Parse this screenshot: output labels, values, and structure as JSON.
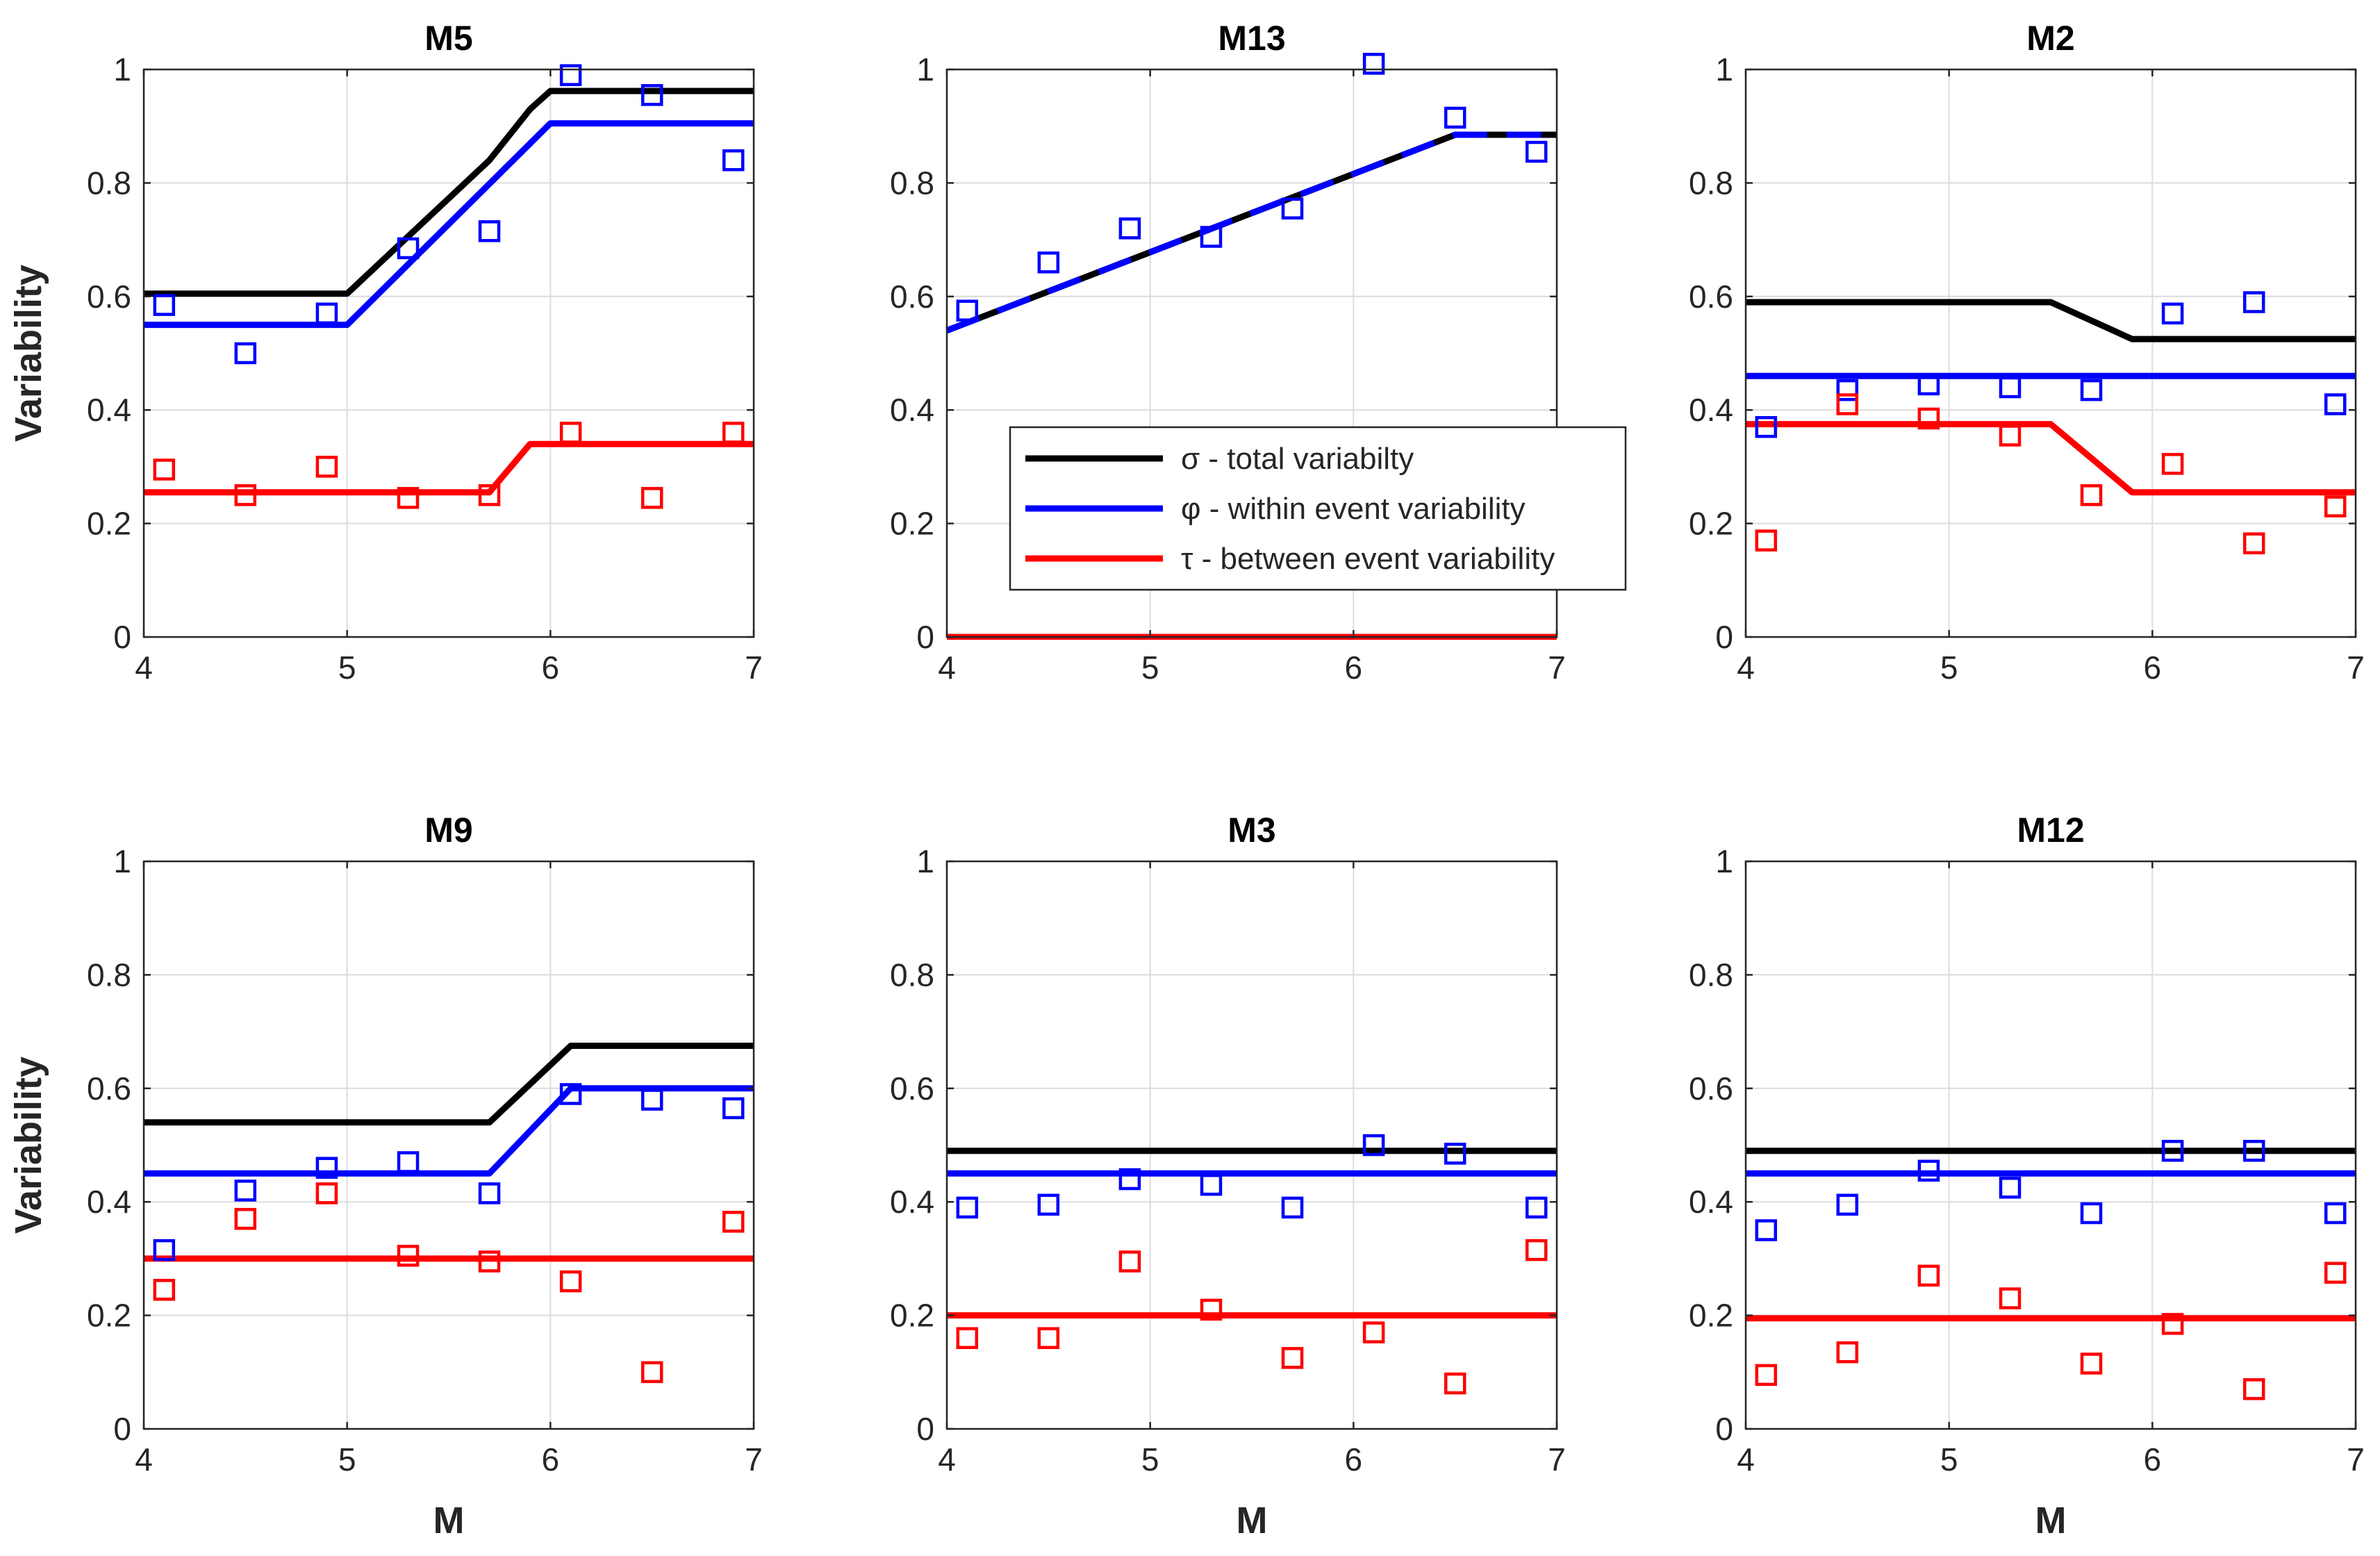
{
  "colors": {
    "sigma": "#000000",
    "phi": "#0000ff",
    "tau": "#ff0000",
    "grid": "#dcdcdc",
    "axis": "#262626"
  },
  "legend": {
    "items": [
      {
        "key": "sigma",
        "label": "σ - total variabilty"
      },
      {
        "key": "phi",
        "label": "φ - within event variability"
      },
      {
        "key": "tau",
        "label": "τ - between event variability"
      }
    ],
    "location": "inside M13 panel, lower-right"
  },
  "chart_data": [
    {
      "type": "line",
      "title": "M5",
      "xlabel": "",
      "ylabel": "Variability",
      "xlim": [
        4,
        7
      ],
      "ylim": [
        0,
        1
      ],
      "xticks": [
        4,
        5,
        6,
        7
      ],
      "yticks": [
        0,
        0.2,
        0.4,
        0.6,
        0.8,
        1
      ],
      "ytick_labels": [
        "0",
        "0.2",
        "0.4",
        "0.6",
        "0.8",
        "1"
      ],
      "grid": true,
      "series": [
        {
          "key": "sigma",
          "kind": "line",
          "x": [
            4,
            5,
            5.7,
            5.9,
            6,
            7
          ],
          "y": [
            0.605,
            0.605,
            0.84,
            0.93,
            0.962,
            0.962
          ]
        },
        {
          "key": "phi",
          "kind": "line",
          "x": [
            4,
            5,
            6,
            7
          ],
          "y": [
            0.55,
            0.55,
            0.905,
            0.905
          ]
        },
        {
          "key": "tau",
          "kind": "line",
          "x": [
            4,
            5.7,
            5.9,
            7
          ],
          "y": [
            0.255,
            0.255,
            0.34,
            0.34
          ]
        },
        {
          "key": "phi",
          "kind": "markers",
          "x": [
            4.1,
            4.5,
            4.9,
            5.3,
            5.7,
            6.1,
            6.5,
            6.9
          ],
          "y": [
            0.585,
            0.5,
            0.57,
            0.685,
            0.715,
            0.99,
            0.955,
            0.84
          ]
        },
        {
          "key": "tau",
          "kind": "markers",
          "x": [
            4.1,
            4.5,
            4.9,
            5.3,
            5.7,
            6.1,
            6.5,
            6.9
          ],
          "y": [
            0.295,
            0.25,
            0.3,
            0.245,
            0.25,
            0.36,
            0.245,
            0.36
          ]
        }
      ]
    },
    {
      "type": "line",
      "title": "M13",
      "xlabel": "",
      "ylabel": "",
      "xlim": [
        4,
        7
      ],
      "ylim": [
        0,
        1
      ],
      "xticks": [
        4,
        5,
        6,
        7
      ],
      "yticks": [
        0,
        0.2,
        0.4,
        0.6,
        0.8,
        1
      ],
      "ytick_labels": [
        "0",
        "0.2",
        "0.4",
        "0.6",
        "0.8",
        "1"
      ],
      "grid": true,
      "series": [
        {
          "key": "sigma",
          "kind": "line",
          "x": [
            4,
            6.5,
            7
          ],
          "y": [
            0.54,
            0.885,
            0.885
          ]
        },
        {
          "key": "phi",
          "kind": "line",
          "dashed": true,
          "x": [
            4,
            6.5,
            7
          ],
          "y": [
            0.54,
            0.885,
            0.885
          ]
        },
        {
          "key": "tau",
          "kind": "line",
          "x": [
            4,
            7
          ],
          "y": [
            0,
            0
          ]
        },
        {
          "key": "phi",
          "kind": "markers",
          "x": [
            4.1,
            4.5,
            4.9,
            5.3,
            5.7,
            6.1,
            6.5,
            6.9
          ],
          "y": [
            0.575,
            0.66,
            0.72,
            0.705,
            0.755,
            1.01,
            0.915,
            0.855
          ]
        }
      ]
    },
    {
      "type": "line",
      "title": "M2",
      "xlabel": "",
      "ylabel": "",
      "xlim": [
        4,
        7
      ],
      "ylim": [
        0,
        1
      ],
      "xticks": [
        4,
        5,
        6,
        7
      ],
      "yticks": [
        0,
        0.2,
        0.4,
        0.6,
        0.8,
        1
      ],
      "ytick_labels": [
        "0",
        "0.2",
        "0.4",
        "0.6",
        "0.8",
        "1"
      ],
      "grid": true,
      "series": [
        {
          "key": "sigma",
          "kind": "line",
          "x": [
            4,
            5.5,
            5.9,
            7
          ],
          "y": [
            0.59,
            0.59,
            0.525,
            0.525
          ]
        },
        {
          "key": "phi",
          "kind": "line",
          "x": [
            4,
            7
          ],
          "y": [
            0.46,
            0.46
          ]
        },
        {
          "key": "tau",
          "kind": "line",
          "x": [
            4,
            5.5,
            5.9,
            7
          ],
          "y": [
            0.375,
            0.375,
            0.255,
            0.255
          ]
        },
        {
          "key": "phi",
          "kind": "markers",
          "x": [
            4.1,
            4.5,
            4.9,
            5.3,
            5.7,
            6.1,
            6.5,
            6.9
          ],
          "y": [
            0.37,
            0.435,
            0.445,
            0.44,
            0.435,
            0.57,
            0.59,
            0.41
          ]
        },
        {
          "key": "tau",
          "kind": "markers",
          "x": [
            4.1,
            4.5,
            4.9,
            5.3,
            5.7,
            6.1,
            6.5,
            6.9
          ],
          "y": [
            0.17,
            0.41,
            0.385,
            0.355,
            0.25,
            0.305,
            0.165,
            0.23
          ]
        }
      ]
    },
    {
      "type": "line",
      "title": "M9",
      "xlabel": "M",
      "ylabel": "Variability",
      "xlim": [
        4,
        7
      ],
      "ylim": [
        0,
        1
      ],
      "xticks": [
        4,
        5,
        6,
        7
      ],
      "yticks": [
        0,
        0.2,
        0.4,
        0.6,
        0.8,
        1
      ],
      "ytick_labels": [
        "0",
        "0.2",
        "0.4",
        "0.6",
        "0.8",
        "1"
      ],
      "grid": true,
      "series": [
        {
          "key": "sigma",
          "kind": "line",
          "x": [
            4,
            5.7,
            6.1,
            7
          ],
          "y": [
            0.54,
            0.54,
            0.675,
            0.675
          ]
        },
        {
          "key": "phi",
          "kind": "line",
          "x": [
            4,
            5.7,
            6.1,
            7
          ],
          "y": [
            0.45,
            0.45,
            0.6,
            0.6
          ]
        },
        {
          "key": "tau",
          "kind": "line",
          "x": [
            4,
            7
          ],
          "y": [
            0.3,
            0.3
          ]
        },
        {
          "key": "phi",
          "kind": "markers",
          "x": [
            4.1,
            4.5,
            4.9,
            5.3,
            5.7,
            6.1,
            6.5,
            6.9
          ],
          "y": [
            0.315,
            0.42,
            0.46,
            0.47,
            0.415,
            0.59,
            0.58,
            0.565
          ]
        },
        {
          "key": "tau",
          "kind": "markers",
          "x": [
            4.1,
            4.5,
            4.9,
            5.3,
            5.7,
            6.1,
            6.5,
            6.9
          ],
          "y": [
            0.245,
            0.37,
            0.415,
            0.305,
            0.295,
            0.26,
            0.1,
            0.365
          ]
        }
      ]
    },
    {
      "type": "line",
      "title": "M3",
      "xlabel": "M",
      "ylabel": "",
      "xlim": [
        4,
        7
      ],
      "ylim": [
        0,
        1
      ],
      "xticks": [
        4,
        5,
        6,
        7
      ],
      "yticks": [
        0,
        0.2,
        0.4,
        0.6,
        0.8,
        1
      ],
      "ytick_labels": [
        "0",
        "0.2",
        "0.4",
        "0.6",
        "0.8",
        "1"
      ],
      "grid": true,
      "series": [
        {
          "key": "sigma",
          "kind": "line",
          "x": [
            4,
            7
          ],
          "y": [
            0.49,
            0.49
          ]
        },
        {
          "key": "phi",
          "kind": "line",
          "x": [
            4,
            7
          ],
          "y": [
            0.45,
            0.45
          ]
        },
        {
          "key": "tau",
          "kind": "line",
          "x": [
            4,
            7
          ],
          "y": [
            0.2,
            0.2
          ]
        },
        {
          "key": "phi",
          "kind": "markers",
          "x": [
            4.1,
            4.5,
            4.9,
            5.3,
            5.7,
            6.1,
            6.5,
            6.9
          ],
          "y": [
            0.39,
            0.395,
            0.44,
            0.43,
            0.39,
            0.5,
            0.485,
            0.39
          ]
        },
        {
          "key": "tau",
          "kind": "markers",
          "x": [
            4.1,
            4.5,
            4.9,
            5.3,
            5.7,
            6.1,
            6.5,
            6.9
          ],
          "y": [
            0.16,
            0.16,
            0.295,
            0.21,
            0.125,
            0.17,
            0.08,
            0.315
          ]
        }
      ]
    },
    {
      "type": "line",
      "title": "M12",
      "xlabel": "M",
      "ylabel": "",
      "xlim": [
        4,
        7
      ],
      "ylim": [
        0,
        1
      ],
      "xticks": [
        4,
        5,
        6,
        7
      ],
      "yticks": [
        0,
        0.2,
        0.4,
        0.6,
        0.8,
        1
      ],
      "ytick_labels": [
        "0",
        "0.2",
        "0.4",
        "0.6",
        "0.8",
        "1"
      ],
      "grid": true,
      "series": [
        {
          "key": "sigma",
          "kind": "line",
          "x": [
            4,
            7
          ],
          "y": [
            0.49,
            0.49
          ]
        },
        {
          "key": "phi",
          "kind": "line",
          "x": [
            4,
            7
          ],
          "y": [
            0.45,
            0.45
          ]
        },
        {
          "key": "tau",
          "kind": "line",
          "x": [
            4,
            7
          ],
          "y": [
            0.195,
            0.195
          ]
        },
        {
          "key": "phi",
          "kind": "markers",
          "x": [
            4.1,
            4.5,
            4.9,
            5.3,
            5.7,
            6.1,
            6.5,
            6.9
          ],
          "y": [
            0.35,
            0.395,
            0.455,
            0.425,
            0.38,
            0.49,
            0.49,
            0.38
          ]
        },
        {
          "key": "tau",
          "kind": "markers",
          "x": [
            4.1,
            4.5,
            4.9,
            5.3,
            5.7,
            6.1,
            6.5,
            6.9
          ],
          "y": [
            0.095,
            0.135,
            0.27,
            0.23,
            0.115,
            0.185,
            0.07,
            0.275
          ]
        }
      ]
    }
  ]
}
